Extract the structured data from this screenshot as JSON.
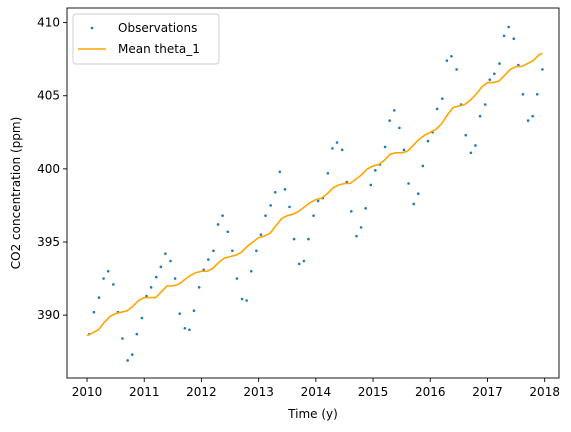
{
  "chart_data": {
    "type": "scatter",
    "title": "",
    "xlabel": "Time (y)",
    "ylabel": "CO2 concentration (ppm)",
    "xlim": [
      2009.65,
      2018.25
    ],
    "ylim": [
      385.7,
      411.0
    ],
    "xticks": [
      "2010",
      "2011",
      "2012",
      "2013",
      "2014",
      "2015",
      "2016",
      "2017",
      "2018"
    ],
    "yticks": [
      "390",
      "395",
      "400",
      "405",
      "410"
    ],
    "grid": false,
    "legend_position": "top-left",
    "series": [
      {
        "name": "Observations",
        "kind": "scatter",
        "color": "#1f77b4",
        "x": [
          2010.04,
          2010.12,
          2010.21,
          2010.29,
          2010.37,
          2010.46,
          2010.54,
          2010.62,
          2010.71,
          2010.79,
          2010.87,
          2010.96,
          2011.04,
          2011.12,
          2011.21,
          2011.29,
          2011.37,
          2011.46,
          2011.54,
          2011.62,
          2011.71,
          2011.79,
          2011.87,
          2011.96,
          2012.04,
          2012.12,
          2012.21,
          2012.29,
          2012.37,
          2012.46,
          2012.54,
          2012.62,
          2012.71,
          2012.79,
          2012.87,
          2012.96,
          2013.04,
          2013.12,
          2013.21,
          2013.29,
          2013.37,
          2013.46,
          2013.54,
          2013.62,
          2013.71,
          2013.79,
          2013.87,
          2013.96,
          2014.04,
          2014.12,
          2014.21,
          2014.29,
          2014.37,
          2014.46,
          2014.54,
          2014.62,
          2014.71,
          2014.79,
          2014.87,
          2014.96,
          2015.04,
          2015.12,
          2015.21,
          2015.29,
          2015.37,
          2015.46,
          2015.54,
          2015.62,
          2015.71,
          2015.79,
          2015.87,
          2015.96,
          2016.04,
          2016.12,
          2016.21,
          2016.29,
          2016.37,
          2016.46,
          2016.54,
          2016.62,
          2016.71,
          2016.79,
          2016.87,
          2016.96,
          2017.04,
          2017.12,
          2017.21,
          2017.29,
          2017.37,
          2017.46,
          2017.54,
          2017.62,
          2017.71,
          2017.79,
          2017.87,
          2017.96
        ],
        "y": [
          388.7,
          390.2,
          391.2,
          392.5,
          393.0,
          392.1,
          390.2,
          388.4,
          386.9,
          387.3,
          388.7,
          389.8,
          391.3,
          391.9,
          392.6,
          393.3,
          394.2,
          393.7,
          392.5,
          390.1,
          389.1,
          389.0,
          390.3,
          391.9,
          393.1,
          393.8,
          394.4,
          396.2,
          396.8,
          395.7,
          394.4,
          392.5,
          391.1,
          391.0,
          393.0,
          394.4,
          395.5,
          396.8,
          397.5,
          398.4,
          399.8,
          398.6,
          397.4,
          395.2,
          393.5,
          393.7,
          395.2,
          396.8,
          397.8,
          398.0,
          399.7,
          401.4,
          401.8,
          401.3,
          399.1,
          397.1,
          395.4,
          396.0,
          397.3,
          398.9,
          399.9,
          400.3,
          401.5,
          403.3,
          404.0,
          402.8,
          401.3,
          399.0,
          397.6,
          398.3,
          400.2,
          401.9,
          402.5,
          404.1,
          404.8,
          407.4,
          407.7,
          406.8,
          404.4,
          402.3,
          401.1,
          401.6,
          403.6,
          404.4,
          406.1,
          406.5,
          407.2,
          409.1,
          409.7,
          408.9,
          407.1,
          405.1,
          403.3,
          403.6,
          405.1,
          406.8
        ]
      },
      {
        "name": "Mean theta_1",
        "kind": "line",
        "color": "#ffa500",
        "x": [
          2010.0,
          2010.1,
          2010.2,
          2010.3,
          2010.4,
          2010.5,
          2010.6,
          2010.7,
          2010.8,
          2010.9,
          2011.0,
          2011.1,
          2011.2,
          2011.3,
          2011.4,
          2011.5,
          2011.6,
          2011.7,
          2011.8,
          2011.9,
          2012.0,
          2012.1,
          2012.2,
          2012.3,
          2012.4,
          2012.5,
          2012.6,
          2012.7,
          2012.8,
          2012.9,
          2013.0,
          2013.1,
          2013.2,
          2013.3,
          2013.4,
          2013.5,
          2013.6,
          2013.7,
          2013.8,
          2013.9,
          2014.0,
          2014.1,
          2014.2,
          2014.3,
          2014.4,
          2014.5,
          2014.6,
          2014.7,
          2014.8,
          2014.9,
          2015.0,
          2015.1,
          2015.2,
          2015.3,
          2015.4,
          2015.5,
          2015.6,
          2015.7,
          2015.8,
          2015.9,
          2016.0,
          2016.1,
          2016.2,
          2016.3,
          2016.4,
          2016.5,
          2016.6,
          2016.7,
          2016.8,
          2016.9,
          2017.0,
          2017.1,
          2017.2,
          2017.3,
          2017.4,
          2017.5,
          2017.6,
          2017.7,
          2017.8,
          2017.9,
          2017.96
        ],
        "y": [
          388.6,
          388.8,
          389.0,
          389.5,
          389.9,
          390.1,
          390.2,
          390.3,
          390.6,
          391.0,
          391.2,
          391.2,
          391.2,
          391.6,
          392.0,
          392.0,
          392.1,
          392.4,
          392.7,
          392.9,
          393.0,
          393.0,
          393.2,
          393.6,
          393.9,
          394.0,
          394.1,
          394.3,
          394.7,
          395.0,
          395.3,
          395.4,
          395.6,
          396.1,
          396.6,
          396.8,
          396.9,
          397.1,
          397.4,
          397.7,
          397.9,
          398.0,
          398.3,
          398.7,
          398.9,
          399.0,
          399.0,
          399.3,
          399.6,
          400.0,
          400.2,
          400.3,
          400.6,
          401.0,
          401.1,
          401.1,
          401.2,
          401.6,
          402.0,
          402.3,
          402.5,
          402.7,
          403.1,
          403.7,
          404.2,
          404.3,
          404.4,
          404.7,
          405.1,
          405.6,
          405.9,
          405.9,
          406.0,
          406.4,
          406.8,
          407.0,
          407.0,
          407.2,
          407.4,
          407.8,
          407.9
        ]
      }
    ],
    "legend": [
      "Observations",
      "Mean theta_1"
    ]
  }
}
